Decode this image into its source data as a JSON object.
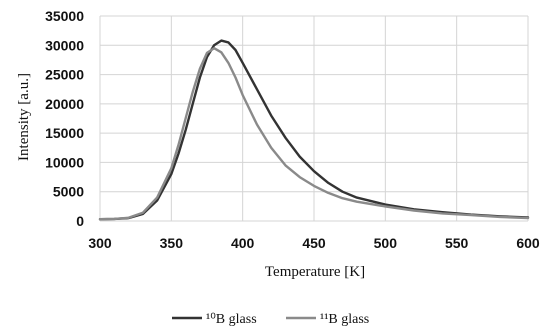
{
  "chart_data": {
    "type": "line",
    "title": "",
    "xlabel": "Temperature  [K]",
    "ylabel": "Intensity  [a.u.]",
    "xlim": [
      300,
      600
    ],
    "ylim": [
      0,
      35000
    ],
    "x_ticks": [
      "300",
      "350",
      "400",
      "450",
      "500",
      "550",
      "600"
    ],
    "y_ticks": [
      "0",
      "5000",
      "10000",
      "15000",
      "20000",
      "25000",
      "30000",
      "35000"
    ],
    "grid": true,
    "legend_position": "bottom",
    "series": [
      {
        "name": "¹⁰B glass",
        "color": "#333333",
        "x": [
          300,
          310,
          320,
          330,
          340,
          350,
          355,
          360,
          365,
          370,
          375,
          380,
          385,
          390,
          395,
          400,
          410,
          420,
          430,
          440,
          450,
          460,
          470,
          480,
          500,
          520,
          540,
          560,
          580,
          600
        ],
        "y": [
          300,
          350,
          500,
          1200,
          3500,
          8000,
          11500,
          15500,
          20000,
          24500,
          28000,
          30000,
          30800,
          30500,
          29200,
          27000,
          22500,
          18000,
          14200,
          11000,
          8500,
          6500,
          5000,
          4000,
          2800,
          2000,
          1500,
          1100,
          800,
          600
        ]
      },
      {
        "name": "¹¹B glass",
        "color": "#8a8a8a",
        "x": [
          300,
          310,
          320,
          330,
          340,
          350,
          355,
          360,
          365,
          370,
          375,
          380,
          385,
          390,
          395,
          400,
          410,
          420,
          430,
          440,
          450,
          460,
          470,
          480,
          500,
          520,
          540,
          560,
          580,
          600
        ],
        "y": [
          300,
          350,
          550,
          1400,
          4000,
          9000,
          13000,
          17500,
          22000,
          26000,
          28700,
          29500,
          28800,
          27000,
          24500,
          21500,
          16500,
          12500,
          9500,
          7500,
          6000,
          4800,
          3900,
          3300,
          2500,
          1800,
          1300,
          1000,
          700,
          500
        ]
      }
    ]
  }
}
